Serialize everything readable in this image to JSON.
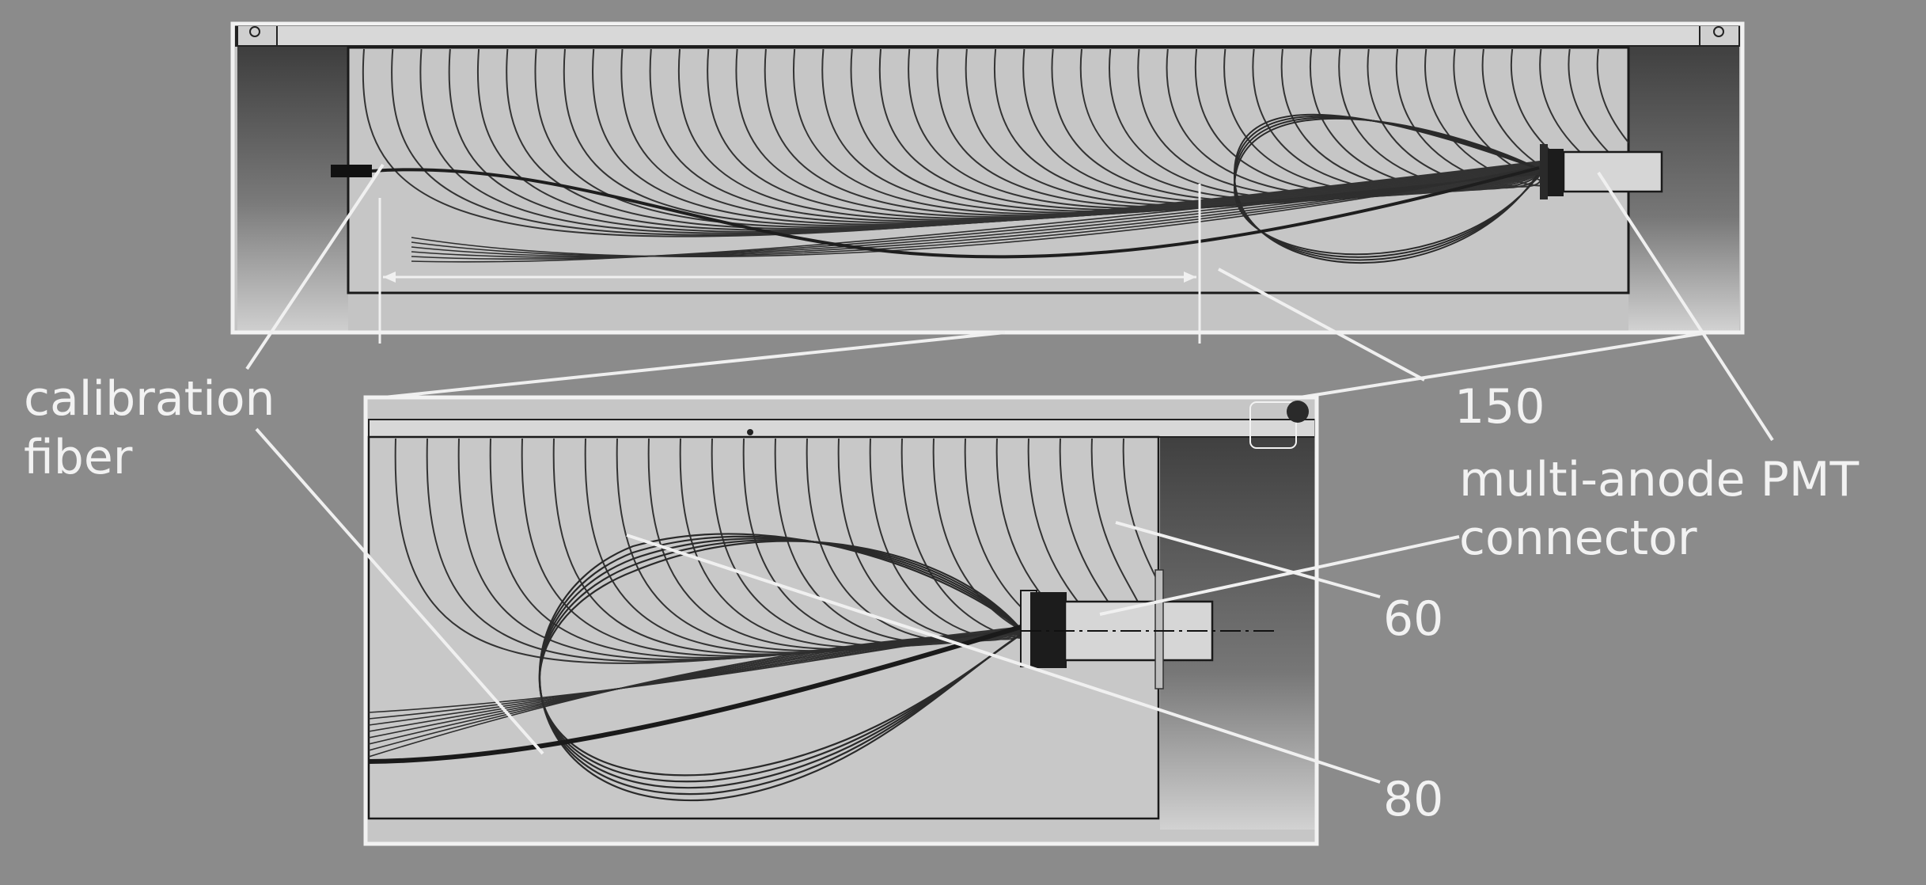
{
  "labels": {
    "calibration_fiber": [
      "calibration",
      "fiber"
    ],
    "dim_150": "150",
    "pmt": [
      "multi-anode PMT",
      "connector"
    ],
    "dim_60": "60",
    "dim_80": "80"
  },
  "colors": {
    "background": "#8b8b8b",
    "panel_fill": "#c6c6c6",
    "frame": "#f2f2f2",
    "fiber": "#2a2a2a",
    "text": "#f2f2f2"
  }
}
